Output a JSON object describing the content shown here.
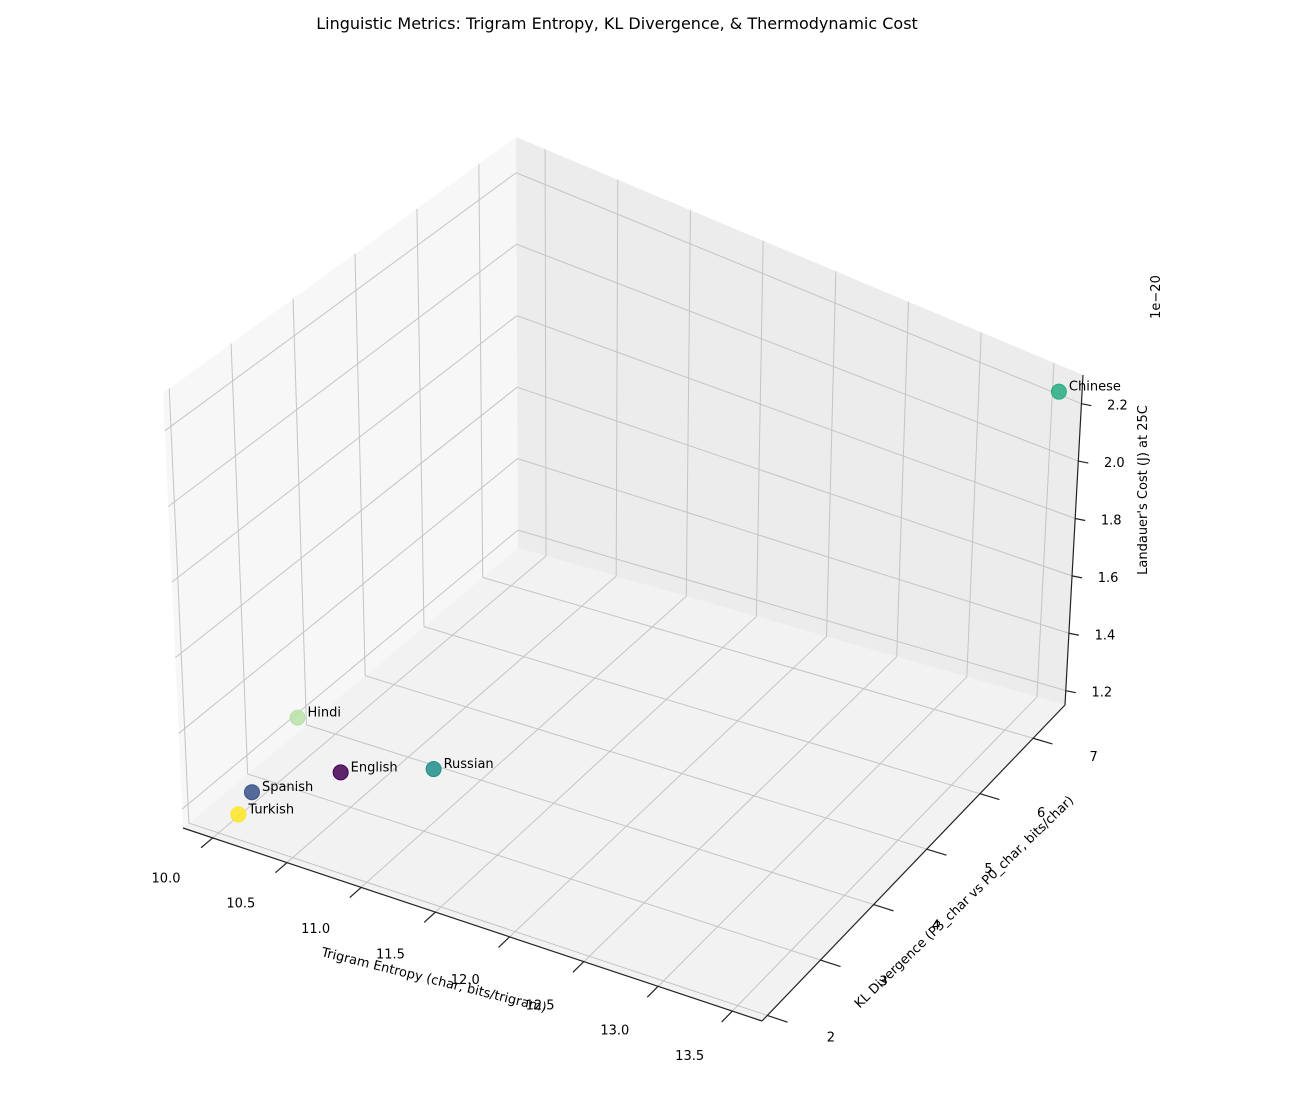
{
  "chart_data": {
    "type": "scatter",
    "title": "Linguistic Metrics: Trigram Entropy, KL Divergence, & Thermodynamic Cost",
    "xlabel": "Trigram Entropy (char, bits/trigram)",
    "ylabel": "KL Divergence (P3_char vs P0_char, bits/char)",
    "zlabel": "Landauer's Cost (J) at 25C",
    "z_offset_label": "1e−20",
    "xlim": [
      9.8,
      13.7
    ],
    "ylim": [
      1.9,
      7.6
    ],
    "zlim": [
      1.15,
      2.3
    ],
    "xticks": [
      "10.0",
      "10.5",
      "11.0",
      "11.5",
      "12.0",
      "12.5",
      "13.0",
      "13.5"
    ],
    "yticks": [
      "2",
      "3",
      "4",
      "5",
      "6",
      "7"
    ],
    "zticks": [
      "1.2",
      "1.4",
      "1.6",
      "1.8",
      "2.0",
      "2.2"
    ],
    "grid": true,
    "points": [
      {
        "label": "English",
        "x": 10.4,
        "y": 3.1,
        "z": 1.22,
        "color": "#440154"
      },
      {
        "label": "Spanish",
        "x": 9.95,
        "y": 2.7,
        "z": 1.16,
        "color": "#3b528b"
      },
      {
        "label": "Russian",
        "x": 11.0,
        "y": 3.2,
        "z": 1.3,
        "color": "#21918c"
      },
      {
        "label": "Chinese",
        "x": 13.6,
        "y": 7.45,
        "z": 2.25,
        "color": "#27ad81"
      },
      {
        "label": "Hindi",
        "x": 10.2,
        "y": 2.9,
        "z": 1.37,
        "color": "#b8e2a8"
      },
      {
        "label": "Turkish",
        "x": 10.1,
        "y": 2.1,
        "z": 1.2,
        "color": "#fde725"
      }
    ]
  }
}
